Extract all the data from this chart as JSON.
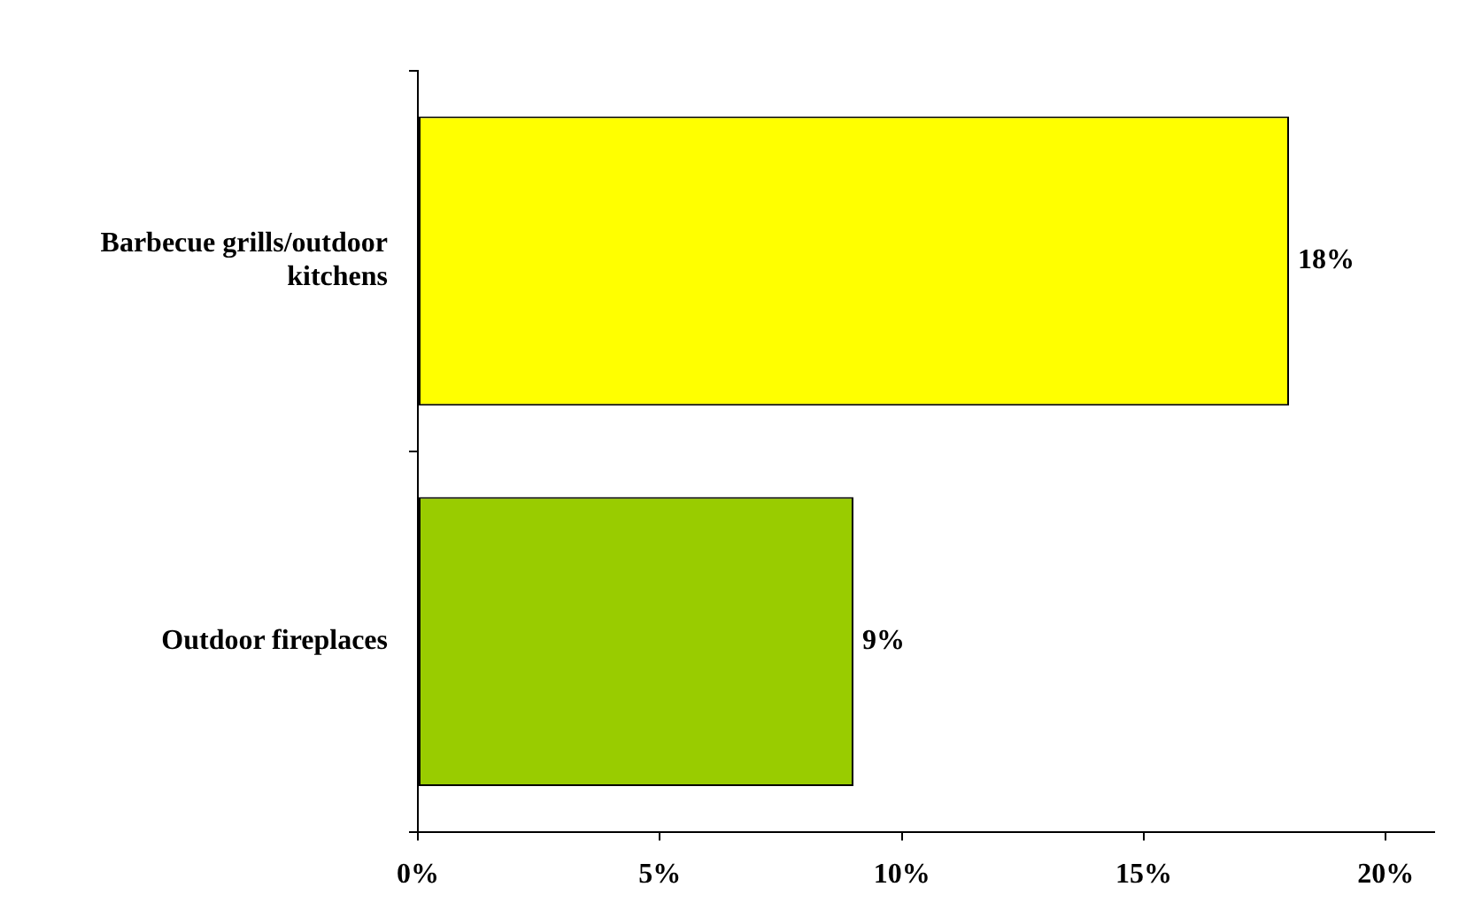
{
  "chart_data": {
    "type": "bar",
    "orientation": "horizontal",
    "categories": [
      "Barbecue grills/outdoor kitchens",
      "Outdoor fireplaces"
    ],
    "values": [
      18,
      9
    ],
    "colors": [
      "#ffff00",
      "#99cc00"
    ],
    "value_labels": [
      "18%",
      "9%"
    ],
    "xlim": [
      0,
      21
    ],
    "xticks": [
      {
        "value": 0,
        "label": "0%"
      },
      {
        "value": 5,
        "label": "5%"
      },
      {
        "value": 10,
        "label": "10%"
      },
      {
        "value": 15,
        "label": "15%"
      },
      {
        "value": 20,
        "label": "20%"
      }
    ],
    "grid": false,
    "legend": false
  }
}
